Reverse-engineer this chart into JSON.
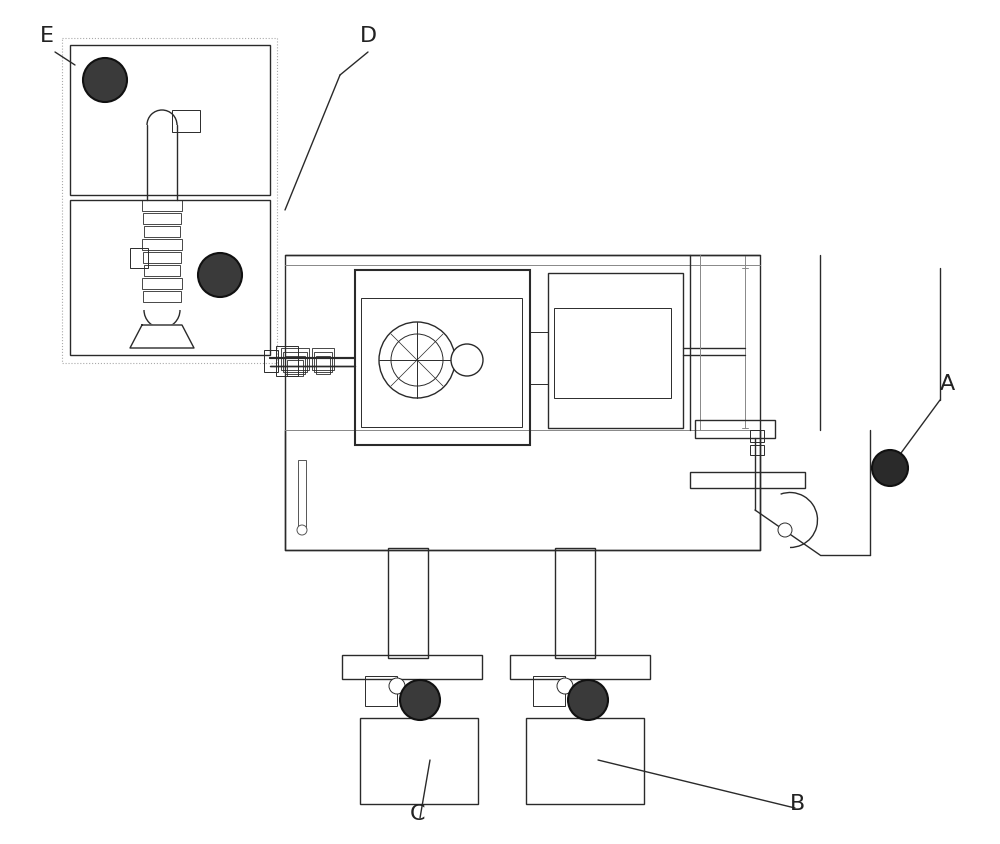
{
  "bg_color": "#ffffff",
  "line_color": "#2a2a2a",
  "dark_color": "#111111",
  "gray_color": "#888888",
  "label_A": "A",
  "label_B": "B",
  "label_C": "C",
  "label_D": "D",
  "label_E": "E",
  "figsize": [
    10.0,
    8.44
  ],
  "dpi": 100
}
